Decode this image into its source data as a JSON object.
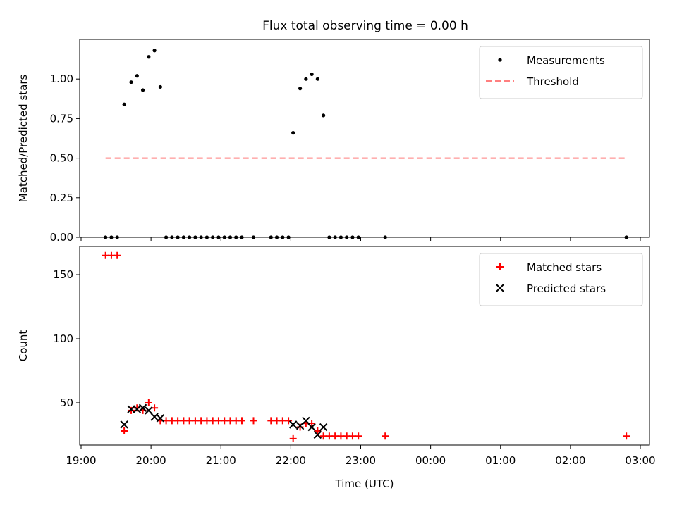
{
  "figure": {
    "title": "Flux total observing time = 0.00 h"
  },
  "chart_data": [
    {
      "type": "scatter",
      "ylabel": "Matched/Predicted stars",
      "xlabel": "",
      "xlim": [
        "19:00",
        "03:00"
      ],
      "ylim": [
        0,
        1.25
      ],
      "yticks": [
        0.0,
        0.25,
        0.5,
        0.75,
        1.0
      ],
      "ytick_labels": [
        "0.00",
        "0.25",
        "0.50",
        "0.75",
        "1.00"
      ],
      "legend_position": "top-right",
      "grid": false,
      "series": [
        {
          "name": "Measurements",
          "kind": "dot",
          "color": "#000000",
          "points": [
            [
              "19:21",
              0
            ],
            [
              "19:26",
              0
            ],
            [
              "19:31",
              0
            ],
            [
              "19:37",
              0.84
            ],
            [
              "19:43",
              0.98
            ],
            [
              "19:48",
              1.02
            ],
            [
              "19:53",
              0.93
            ],
            [
              "19:58",
              1.14
            ],
            [
              "20:03",
              1.18
            ],
            [
              "20:08",
              0.95
            ],
            [
              "20:13",
              0
            ],
            [
              "20:18",
              0
            ],
            [
              "20:23",
              0
            ],
            [
              "20:28",
              0
            ],
            [
              "20:33",
              0
            ],
            [
              "20:38",
              0
            ],
            [
              "20:43",
              0
            ],
            [
              "20:48",
              0
            ],
            [
              "20:53",
              0
            ],
            [
              "20:58",
              0
            ],
            [
              "21:03",
              0
            ],
            [
              "21:08",
              0
            ],
            [
              "21:13",
              0
            ],
            [
              "21:18",
              0
            ],
            [
              "21:28",
              0
            ],
            [
              "21:43",
              0
            ],
            [
              "21:48",
              0
            ],
            [
              "21:53",
              0
            ],
            [
              "21:58",
              0
            ],
            [
              "22:02",
              0.66
            ],
            [
              "22:08",
              0.94
            ],
            [
              "22:13",
              1.0
            ],
            [
              "22:18",
              1.03
            ],
            [
              "22:23",
              1.0
            ],
            [
              "22:28",
              0.77
            ],
            [
              "22:33",
              0
            ],
            [
              "22:38",
              0
            ],
            [
              "22:43",
              0
            ],
            [
              "22:48",
              0
            ],
            [
              "22:53",
              0
            ],
            [
              "22:58",
              0
            ],
            [
              "23:21",
              0
            ],
            [
              "02:48",
              0
            ]
          ]
        },
        {
          "name": "Threshold",
          "kind": "dashed-line",
          "color": "#ff7f7f",
          "points": [
            [
              "19:21",
              0.5
            ],
            [
              "02:48",
              0.5
            ]
          ]
        }
      ]
    },
    {
      "type": "scatter",
      "ylabel": "Count",
      "xlabel": "Time (UTC)",
      "xlim": [
        "19:00",
        "03:00"
      ],
      "xticks": [
        "19:00",
        "20:00",
        "21:00",
        "22:00",
        "23:00",
        "00:00",
        "01:00",
        "02:00",
        "03:00"
      ],
      "ylim": [
        17,
        172
      ],
      "yticks": [
        50,
        100,
        150
      ],
      "ytick_labels": [
        "50",
        "100",
        "150"
      ],
      "legend_position": "top-right",
      "grid": false,
      "series": [
        {
          "name": "Matched stars",
          "kind": "plus",
          "color": "#ff0000",
          "points": [
            [
              "19:21",
              165
            ],
            [
              "19:26",
              165
            ],
            [
              "19:31",
              165
            ],
            [
              "19:37",
              28
            ],
            [
              "19:43",
              44
            ],
            [
              "19:48",
              46
            ],
            [
              "19:53",
              44
            ],
            [
              "19:58",
              50
            ],
            [
              "20:03",
              46
            ],
            [
              "20:08",
              36
            ],
            [
              "20:13",
              36
            ],
            [
              "20:18",
              36
            ],
            [
              "20:23",
              36
            ],
            [
              "20:28",
              36
            ],
            [
              "20:33",
              36
            ],
            [
              "20:38",
              36
            ],
            [
              "20:43",
              36
            ],
            [
              "20:48",
              36
            ],
            [
              "20:53",
              36
            ],
            [
              "20:58",
              36
            ],
            [
              "21:03",
              36
            ],
            [
              "21:08",
              36
            ],
            [
              "21:13",
              36
            ],
            [
              "21:18",
              36
            ],
            [
              "21:28",
              36
            ],
            [
              "21:43",
              36
            ],
            [
              "21:48",
              36
            ],
            [
              "21:53",
              36
            ],
            [
              "21:58",
              36
            ],
            [
              "22:02",
              22
            ],
            [
              "22:08",
              31
            ],
            [
              "22:13",
              34
            ],
            [
              "22:18",
              34
            ],
            [
              "22:23",
              28
            ],
            [
              "22:28",
              24
            ],
            [
              "22:33",
              24
            ],
            [
              "22:38",
              24
            ],
            [
              "22:43",
              24
            ],
            [
              "22:48",
              24
            ],
            [
              "22:53",
              24
            ],
            [
              "22:58",
              24
            ],
            [
              "23:21",
              24
            ],
            [
              "02:48",
              24
            ]
          ]
        },
        {
          "name": "Predicted stars",
          "kind": "x",
          "color": "#000000",
          "points": [
            [
              "19:37",
              33
            ],
            [
              "19:43",
              45
            ],
            [
              "19:48",
              45
            ],
            [
              "19:53",
              46
            ],
            [
              "19:58",
              44
            ],
            [
              "20:03",
              39
            ],
            [
              "20:08",
              38
            ],
            [
              "22:02",
              33
            ],
            [
              "22:08",
              32
            ],
            [
              "22:13",
              36
            ],
            [
              "22:18",
              31
            ],
            [
              "22:23",
              25
            ],
            [
              "22:28",
              31
            ]
          ]
        }
      ]
    }
  ]
}
